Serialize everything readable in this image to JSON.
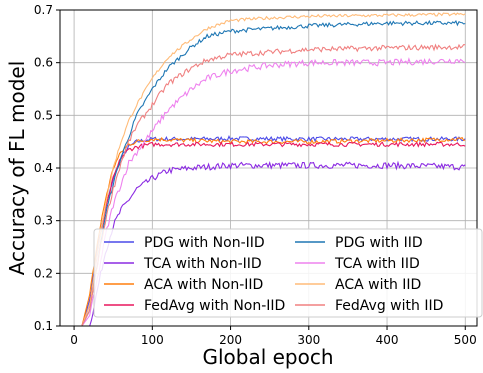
{
  "chart_data": {
    "type": "line",
    "title": "",
    "xlabel": "Global epoch",
    "ylabel": "Accuracy of FL model",
    "xlim": [
      -18,
      515
    ],
    "ylim": [
      0.1,
      0.7
    ],
    "xticks": [
      "0",
      "100",
      "200",
      "300",
      "400",
      "500"
    ],
    "yticks": [
      "0.1",
      "0.2",
      "0.3",
      "0.4",
      "0.5",
      "0.6",
      "0.7"
    ],
    "grid": true,
    "legend_position": "lower-center, two columns",
    "series": [
      {
        "name": "PDG with Non-IID",
        "color": "#4a4ae8",
        "x": [
          0,
          10,
          20,
          30,
          40,
          50,
          60,
          70,
          80,
          100,
          150,
          200,
          300,
          400,
          500
        ],
        "y": [
          0.1,
          0.1,
          0.15,
          0.25,
          0.32,
          0.38,
          0.42,
          0.44,
          0.45,
          0.455,
          0.455,
          0.456,
          0.455,
          0.455,
          0.455
        ],
        "noise": 0.004
      },
      {
        "name": "TCA with Non-IID",
        "color": "#8b2be2",
        "x": [
          0,
          10,
          20,
          30,
          40,
          50,
          60,
          70,
          80,
          100,
          120,
          150,
          200,
          300,
          400,
          500
        ],
        "y": [
          0.1,
          0.1,
          0.1,
          0.17,
          0.24,
          0.29,
          0.32,
          0.34,
          0.36,
          0.38,
          0.395,
          0.4,
          0.405,
          0.405,
          0.405,
          0.402
        ],
        "noise": 0.006
      },
      {
        "name": "ACA with Non-IID",
        "color": "#ff7f0e",
        "x": [
          0,
          10,
          20,
          30,
          40,
          50,
          60,
          70,
          80,
          100,
          150,
          200,
          300,
          400,
          500
        ],
        "y": [
          0.1,
          0.1,
          0.16,
          0.26,
          0.34,
          0.4,
          0.43,
          0.445,
          0.45,
          0.455,
          0.452,
          0.45,
          0.45,
          0.452,
          0.455
        ],
        "noise": 0.004
      },
      {
        "name": "FedAvg with Non-IID",
        "color": "#e8175d",
        "x": [
          0,
          10,
          20,
          30,
          40,
          50,
          60,
          70,
          80,
          100,
          150,
          200,
          300,
          400,
          500
        ],
        "y": [
          0.1,
          0.1,
          0.14,
          0.24,
          0.32,
          0.38,
          0.42,
          0.435,
          0.44,
          0.445,
          0.445,
          0.445,
          0.445,
          0.445,
          0.445
        ],
        "noise": 0.004
      },
      {
        "name": "PDG with IID",
        "color": "#1f77b4",
        "x": [
          0,
          10,
          20,
          30,
          40,
          50,
          60,
          70,
          80,
          100,
          120,
          150,
          170,
          200,
          250,
          300,
          400,
          500
        ],
        "y": [
          0.1,
          0.1,
          0.13,
          0.22,
          0.31,
          0.37,
          0.42,
          0.46,
          0.5,
          0.55,
          0.59,
          0.63,
          0.65,
          0.66,
          0.665,
          0.67,
          0.675,
          0.675
        ],
        "noise": 0.004
      },
      {
        "name": "TCA with IID",
        "color": "#ee82ee",
        "x": [
          0,
          10,
          20,
          30,
          40,
          50,
          60,
          70,
          80,
          100,
          120,
          150,
          170,
          200,
          250,
          300,
          400,
          500
        ],
        "y": [
          0.1,
          0.1,
          0.12,
          0.19,
          0.27,
          0.33,
          0.37,
          0.41,
          0.43,
          0.47,
          0.51,
          0.55,
          0.57,
          0.585,
          0.595,
          0.6,
          0.6,
          0.605
        ],
        "noise": 0.006
      },
      {
        "name": "ACA with IID",
        "color": "#ffbb78",
        "x": [
          0,
          10,
          20,
          30,
          40,
          50,
          60,
          70,
          80,
          100,
          120,
          150,
          170,
          200,
          250,
          300,
          400,
          500
        ],
        "y": [
          0.1,
          0.1,
          0.14,
          0.24,
          0.33,
          0.4,
          0.45,
          0.49,
          0.52,
          0.57,
          0.61,
          0.645,
          0.665,
          0.68,
          0.685,
          0.688,
          0.69,
          0.692
        ],
        "noise": 0.003
      },
      {
        "name": "FedAvg with IID",
        "color": "#f08080",
        "x": [
          0,
          10,
          20,
          30,
          40,
          50,
          60,
          70,
          80,
          100,
          120,
          150,
          170,
          200,
          250,
          300,
          400,
          500
        ],
        "y": [
          0.1,
          0.1,
          0.13,
          0.22,
          0.3,
          0.36,
          0.41,
          0.45,
          0.48,
          0.52,
          0.56,
          0.59,
          0.605,
          0.615,
          0.62,
          0.625,
          0.628,
          0.63
        ],
        "noise": 0.005
      }
    ]
  }
}
